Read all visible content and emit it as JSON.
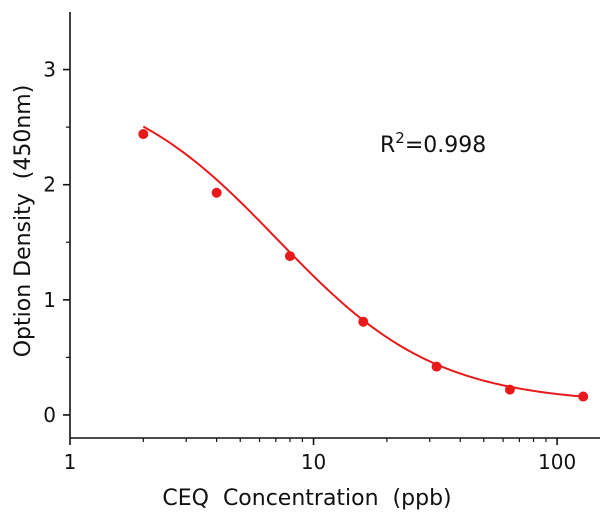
{
  "chart_data": {
    "type": "scatter",
    "xlabel": "CEQ  Concentration  (ppb)",
    "ylabel": "Option Density  (450nm)",
    "xscale": "log",
    "xlim": [
      1,
      150
    ],
    "ylim": [
      -0.2,
      3.5
    ],
    "xticks": [
      1,
      10,
      100
    ],
    "xtick_labels": [
      "1",
      "10",
      "100"
    ],
    "yticks": [
      0,
      1,
      2,
      3
    ],
    "ytick_labels": [
      "0",
      "1",
      "2",
      "3"
    ],
    "grid": false,
    "color": "#e8191a",
    "series": [
      {
        "x": [
          2,
          4,
          8,
          16,
          32,
          64,
          128
        ],
        "y": [
          2.44,
          1.93,
          1.38,
          0.81,
          0.42,
          0.22,
          0.16
        ]
      }
    ],
    "fit_curve": {
      "type": "4PL",
      "bottom": 0.1,
      "top": 2.95,
      "ec50": 7.1,
      "hill": 1.33
    },
    "annotation": {
      "base": "R",
      "sup": "2",
      "rest": "=0.998"
    }
  }
}
